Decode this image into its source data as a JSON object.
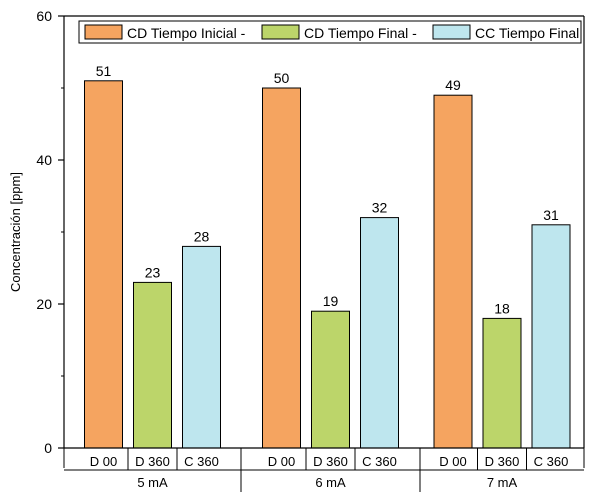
{
  "chart_data": {
    "type": "bar",
    "title": "",
    "ylabel": "Concentración [ppm]",
    "xlabel": "",
    "ylim": [
      0,
      60
    ],
    "yticks": [
      0,
      20,
      40,
      60
    ],
    "grid": false,
    "legend_position": "top",
    "groups": [
      {
        "label": "5 mA",
        "bars": [
          {
            "label": "D 00",
            "value": 51,
            "series": 0
          },
          {
            "label": "D 360",
            "value": 23,
            "series": 1
          },
          {
            "label": "C 360",
            "value": 28,
            "series": 2
          }
        ]
      },
      {
        "label": "6 mA",
        "bars": [
          {
            "label": "D 00",
            "value": 50,
            "series": 0
          },
          {
            "label": "D 360",
            "value": 19,
            "series": 1
          },
          {
            "label": "C 360",
            "value": 32,
            "series": 2
          }
        ]
      },
      {
        "label": "7 mA",
        "bars": [
          {
            "label": "D 00",
            "value": 49,
            "series": 0
          },
          {
            "label": "D 360",
            "value": 18,
            "series": 1
          },
          {
            "label": "C 360",
            "value": 31,
            "series": 2
          }
        ]
      }
    ],
    "series": [
      {
        "name": "CD Tiempo Inicial -",
        "color": "#F5A460"
      },
      {
        "name": "CD Tiempo Final -",
        "color": "#BCD56A"
      },
      {
        "name": "CC Tiempo Final",
        "color": "#BEE6EE"
      }
    ]
  }
}
